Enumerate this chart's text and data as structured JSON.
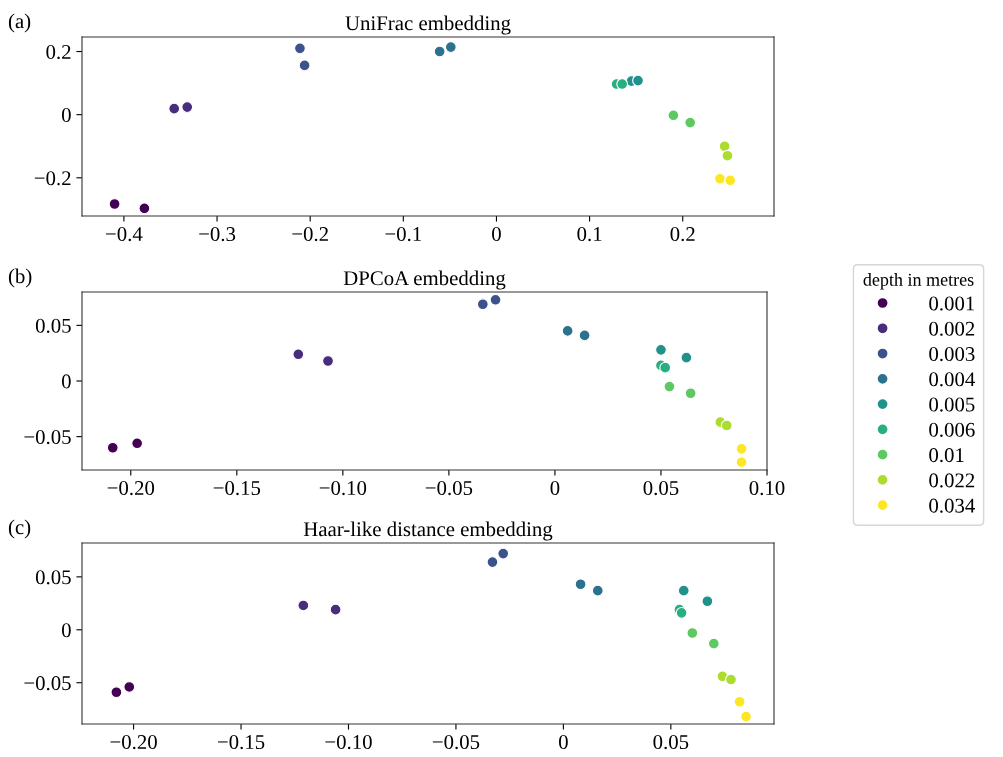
{
  "chart_data": [
    {
      "type": "scatter",
      "title": "UniFrac embedding",
      "annotations": [
        "(a)"
      ],
      "legend": "right",
      "legend_title": "depth in metres",
      "xlim": [
        -0.445,
        0.298
      ],
      "ylim": [
        -0.321,
        0.246
      ],
      "xticks": [
        -0.4,
        -0.3,
        -0.2,
        -0.1,
        0,
        0.1,
        0.2
      ],
      "yticks": [
        -0.2,
        0,
        0.2
      ],
      "series": [
        {
          "name": "0.001",
          "color": "#440154",
          "x": [
            -0.41,
            -0.378
          ],
          "values": [
            -0.283,
            -0.297
          ]
        },
        {
          "name": "0.002",
          "color": "#472d7b",
          "x": [
            -0.346,
            -0.332
          ],
          "values": [
            0.019,
            0.024
          ]
        },
        {
          "name": "0.003",
          "color": "#3b528b",
          "x": [
            -0.211,
            -0.206
          ],
          "values": [
            0.21,
            0.156
          ]
        },
        {
          "name": "0.004",
          "color": "#2c728e",
          "x": [
            -0.061,
            -0.049
          ],
          "values": [
            0.2,
            0.214
          ]
        },
        {
          "name": "0.005",
          "color": "#21918c",
          "x": [
            0.145,
            0.152
          ],
          "values": [
            0.106,
            0.108
          ]
        },
        {
          "name": "0.006",
          "color": "#28ae80",
          "x": [
            0.129,
            0.135
          ],
          "values": [
            0.097,
            0.097
          ]
        },
        {
          "name": "0.01",
          "color": "#5ec962",
          "x": [
            0.19,
            0.208
          ],
          "values": [
            -0.002,
            -0.025
          ]
        },
        {
          "name": "0.022",
          "color": "#addc30",
          "x": [
            0.245,
            0.248
          ],
          "values": [
            -0.1,
            -0.13
          ]
        },
        {
          "name": "0.034",
          "color": "#fde725",
          "x": [
            0.24,
            0.251
          ],
          "values": [
            -0.203,
            -0.208
          ]
        }
      ]
    },
    {
      "type": "scatter",
      "title": "DPCoA embedding",
      "annotations": [
        "(b)"
      ],
      "legend": false,
      "xlim": [
        -0.223,
        0.1
      ],
      "ylim": [
        -0.08,
        0.08
      ],
      "xticks": [
        {
          "value": -0.2,
          "label": "−0.20"
        },
        {
          "value": -0.15,
          "label": "−0.15"
        },
        {
          "value": -0.1,
          "label": "−0.10"
        },
        {
          "value": -0.05,
          "label": "−0.05"
        },
        0,
        0.05,
        {
          "value": 0.1,
          "label": "0.10"
        }
      ],
      "yticks": [
        {
          "value": -0.05,
          "label": "−0.05"
        },
        0,
        0.05
      ],
      "series": [
        {
          "name": "0.001",
          "color": "#440154",
          "x": [
            -0.2085,
            -0.197
          ],
          "values": [
            -0.06,
            -0.056
          ]
        },
        {
          "name": "0.002",
          "color": "#472d7b",
          "x": [
            -0.121,
            -0.107
          ],
          "values": [
            0.024,
            0.018
          ]
        },
        {
          "name": "0.003",
          "color": "#3b528b",
          "x": [
            -0.034,
            -0.028
          ],
          "values": [
            0.069,
            0.073
          ]
        },
        {
          "name": "0.004",
          "color": "#2c728e",
          "x": [
            0.006,
            0.014
          ],
          "values": [
            0.045,
            0.041
          ]
        },
        {
          "name": "0.005",
          "color": "#21918c",
          "x": [
            0.05,
            0.062
          ],
          "values": [
            0.028,
            0.021
          ]
        },
        {
          "name": "0.006",
          "color": "#28ae80",
          "x": [
            0.05,
            0.052
          ],
          "values": [
            0.014,
            0.012
          ]
        },
        {
          "name": "0.01",
          "color": "#5ec962",
          "x": [
            0.054,
            0.064
          ],
          "values": [
            -0.005,
            -0.011
          ]
        },
        {
          "name": "0.022",
          "color": "#addc30",
          "x": [
            0.078,
            0.081
          ],
          "values": [
            -0.037,
            -0.04
          ]
        },
        {
          "name": "0.034",
          "color": "#fde725",
          "x": [
            0.088,
            0.088
          ],
          "values": [
            -0.061,
            -0.073
          ]
        }
      ]
    },
    {
      "type": "scatter",
      "title": "Haar-like distance embedding",
      "annotations": [
        "(c)"
      ],
      "legend": false,
      "xlim": [
        -0.224,
        0.098
      ],
      "ylim": [
        -0.089,
        0.082
      ],
      "xticks": [
        {
          "value": -0.2,
          "label": "−0.20"
        },
        {
          "value": -0.15,
          "label": "−0.15"
        },
        {
          "value": -0.1,
          "label": "−0.10"
        },
        {
          "value": -0.05,
          "label": "−0.05"
        },
        0,
        0.05
      ],
      "yticks": [
        {
          "value": -0.05,
          "label": "−0.05"
        },
        0,
        0.05
      ],
      "series": [
        {
          "name": "0.001",
          "color": "#440154",
          "x": [
            -0.208,
            -0.202
          ],
          "values": [
            -0.059,
            -0.054
          ]
        },
        {
          "name": "0.002",
          "color": "#472d7b",
          "x": [
            -0.121,
            -0.106
          ],
          "values": [
            0.023,
            0.019
          ]
        },
        {
          "name": "0.003",
          "color": "#3b528b",
          "x": [
            -0.033,
            -0.028
          ],
          "values": [
            0.064,
            0.072
          ]
        },
        {
          "name": "0.004",
          "color": "#2c728e",
          "x": [
            0.008,
            0.016
          ],
          "values": [
            0.043,
            0.037
          ]
        },
        {
          "name": "0.005",
          "color": "#21918c",
          "x": [
            0.056,
            0.067
          ],
          "values": [
            0.037,
            0.027
          ]
        },
        {
          "name": "0.006",
          "color": "#28ae80",
          "x": [
            0.054,
            0.055
          ],
          "values": [
            0.019,
            0.016
          ]
        },
        {
          "name": "0.01",
          "color": "#5ec962",
          "x": [
            0.06,
            0.07
          ],
          "values": [
            -0.003,
            -0.013
          ]
        },
        {
          "name": "0.022",
          "color": "#addc30",
          "x": [
            0.074,
            0.078
          ],
          "values": [
            -0.044,
            -0.047
          ]
        },
        {
          "name": "0.034",
          "color": "#fde725",
          "x": [
            0.082,
            0.085
          ],
          "values": [
            -0.068,
            -0.082
          ]
        }
      ]
    }
  ]
}
